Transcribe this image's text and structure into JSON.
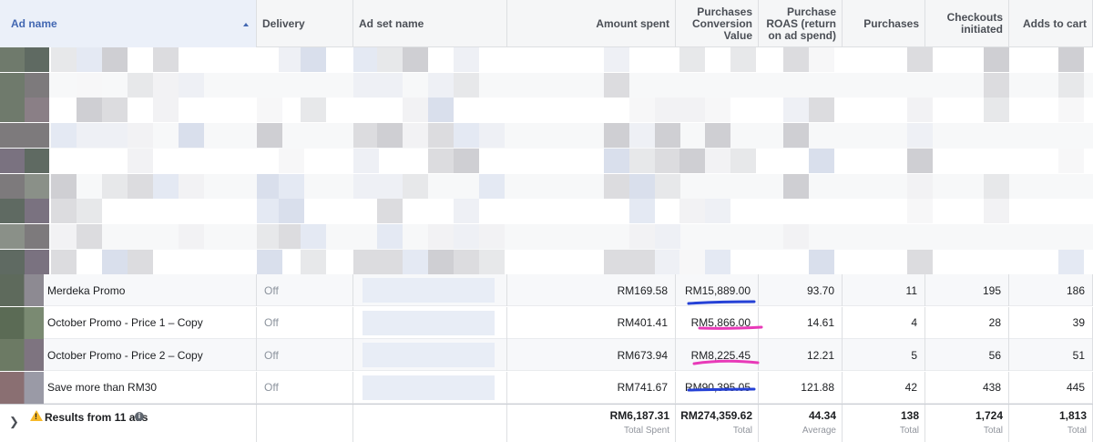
{
  "header": {
    "columns": [
      "Ad name",
      "Delivery",
      "Ad set name",
      "Amount spent",
      "Purchases Conversion Value",
      "Purchase ROAS (return on ad spend)",
      "Purchases",
      "Checkouts initiated",
      "Adds to cart"
    ]
  },
  "rows": [
    {
      "ad_name": "Merdeka Promo",
      "delivery": "Off",
      "amount_spent": "RM169.58",
      "conversion_value": "RM15,889.00",
      "roas": "93.70",
      "purchases": "11",
      "checkouts": "195",
      "adds_to_cart": "186"
    },
    {
      "ad_name": "October Promo - Price 1 – Copy",
      "delivery": "Off",
      "amount_spent": "RM401.41",
      "conversion_value": "RM5,866.00",
      "roas": "14.61",
      "purchases": "4",
      "checkouts": "28",
      "adds_to_cart": "39"
    },
    {
      "ad_name": "October Promo - Price 2 – Copy",
      "delivery": "Off",
      "amount_spent": "RM673.94",
      "conversion_value": "RM8,225.45",
      "roas": "12.21",
      "purchases": "5",
      "checkouts": "56",
      "adds_to_cart": "51"
    },
    {
      "ad_name": "Save more than RM30",
      "delivery": "Off",
      "amount_spent": "RM741.67",
      "conversion_value": "RM90,395.05",
      "roas": "121.88",
      "purchases": "42",
      "checkouts": "438",
      "adds_to_cart": "445"
    }
  ],
  "footer": {
    "results_label": "Results from 11 ads",
    "totals": [
      {
        "value": "RM6,187.31",
        "label": "Total Spent"
      },
      {
        "value": "RM274,359.62",
        "label": "Total"
      },
      {
        "value": "44.34",
        "label": "Average"
      },
      {
        "value": "138",
        "label": "Total"
      },
      {
        "value": "1,724",
        "label": "Total"
      },
      {
        "value": "1,813",
        "label": "Total"
      }
    ]
  },
  "icons": {
    "sort": "sort-ascending-icon",
    "expand": "chevron-right-icon",
    "warning": "warning-icon",
    "info": "info-icon"
  },
  "colors": {
    "accent": "#4267b2",
    "annotation_blue": "#2541d6",
    "annotation_pink": "#e83ab8",
    "warning": "#f7b928"
  }
}
